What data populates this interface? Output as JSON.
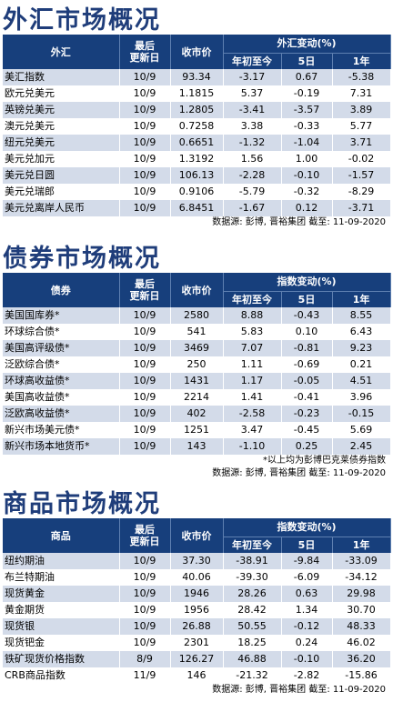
{
  "fx": {
    "title": "外汇市场概况",
    "headers": {
      "name": "外汇",
      "date": "最后\n更新日",
      "close": "收市价",
      "change_group": "外汇变动(%)",
      "ytd": "年初至今",
      "d5": "5日",
      "y1": "1年"
    },
    "rows": [
      {
        "name": "美汇指数",
        "date": "10/9",
        "close": "93.34",
        "ytd": "-3.17",
        "d5": "0.67",
        "y1": "-5.38"
      },
      {
        "name": "欧元兑美元",
        "date": "10/9",
        "close": "1.1815",
        "ytd": "5.37",
        "d5": "-0.19",
        "y1": "7.31"
      },
      {
        "name": "英镑兑美元",
        "date": "10/9",
        "close": "1.2805",
        "ytd": "-3.41",
        "d5": "-3.57",
        "y1": "3.89"
      },
      {
        "name": "澳元兑美元",
        "date": "10/9",
        "close": "0.7258",
        "ytd": "3.38",
        "d5": "-0.33",
        "y1": "5.77"
      },
      {
        "name": "纽元兑美元",
        "date": "10/9",
        "close": "0.6651",
        "ytd": "-1.32",
        "d5": "-1.04",
        "y1": "3.71"
      },
      {
        "name": "美元兑加元",
        "date": "10/9",
        "close": "1.3192",
        "ytd": "1.56",
        "d5": "1.00",
        "y1": "-0.02"
      },
      {
        "name": "美元兑日圆",
        "date": "10/9",
        "close": "106.13",
        "ytd": "-2.28",
        "d5": "-0.10",
        "y1": "-1.57"
      },
      {
        "name": "美元兑瑞郎",
        "date": "10/9",
        "close": "0.9106",
        "ytd": "-5.79",
        "d5": "-0.32",
        "y1": "-8.29"
      },
      {
        "name": "美元兑离岸人民币",
        "date": "10/9",
        "close": "6.8451",
        "ytd": "-1.67",
        "d5": "0.12",
        "y1": "-3.71"
      }
    ],
    "source": "数据源: 彭博, 晋裕集团 截至: 11-09-2020"
  },
  "bond": {
    "title": "债券市场概况",
    "headers": {
      "name": "债券",
      "date": "最后\n更新日",
      "close": "收市价",
      "change_group": "指数变动(%)",
      "ytd": "年初至今",
      "d5": "5日",
      "y1": "1年"
    },
    "rows": [
      {
        "name": "美国国库券*",
        "date": "10/9",
        "close": "2580",
        "ytd": "8.88",
        "d5": "-0.43",
        "y1": "8.55"
      },
      {
        "name": "环球综合债*",
        "date": "10/9",
        "close": "541",
        "ytd": "5.83",
        "d5": "0.10",
        "y1": "6.43"
      },
      {
        "name": "美国高评级债*",
        "date": "10/9",
        "close": "3469",
        "ytd": "7.07",
        "d5": "-0.81",
        "y1": "9.23"
      },
      {
        "name": "泛欧综合债*",
        "date": "10/9",
        "close": "250",
        "ytd": "1.11",
        "d5": "-0.69",
        "y1": "0.21"
      },
      {
        "name": "环球高收益债*",
        "date": "10/9",
        "close": "1431",
        "ytd": "1.17",
        "d5": "-0.05",
        "y1": "4.51"
      },
      {
        "name": "美国高收益债*",
        "date": "10/9",
        "close": "2214",
        "ytd": "1.41",
        "d5": "-0.41",
        "y1": "3.96"
      },
      {
        "name": "泛欧高收益债*",
        "date": "10/9",
        "close": "402",
        "ytd": "-2.58",
        "d5": "-0.23",
        "y1": "-0.15"
      },
      {
        "name": "新兴市场美元债*",
        "date": "10/9",
        "close": "1251",
        "ytd": "3.47",
        "d5": "-0.45",
        "y1": "5.69"
      },
      {
        "name": "新兴市场本地货币*",
        "date": "10/9",
        "close": "143",
        "ytd": "-1.10",
        "d5": "0.25",
        "y1": "2.45"
      }
    ],
    "note": "*以上均为彭博巴克莱债券指数",
    "source": "数据源: 彭博, 晋裕集团 截至: 11-09-2020"
  },
  "commodity": {
    "title": "商品市场概况",
    "headers": {
      "name": "商品",
      "date": "最后\n更新日",
      "close": "收市价",
      "change_group": "指数变动(%)",
      "ytd": "年初至今",
      "d5": "5日",
      "y1": "1年"
    },
    "rows": [
      {
        "name": "纽约期油",
        "date": "10/9",
        "close": "37.30",
        "ytd": "-38.91",
        "d5": "-9.84",
        "y1": "-33.09"
      },
      {
        "name": "布兰特期油",
        "date": "10/9",
        "close": "40.06",
        "ytd": "-39.30",
        "d5": "-6.09",
        "y1": "-34.12"
      },
      {
        "name": "现货黄金",
        "date": "10/9",
        "close": "1946",
        "ytd": "28.26",
        "d5": "0.63",
        "y1": "29.98"
      },
      {
        "name": "黄金期货",
        "date": "10/9",
        "close": "1956",
        "ytd": "28.42",
        "d5": "1.34",
        "y1": "30.70"
      },
      {
        "name": "现货银",
        "date": "10/9",
        "close": "26.88",
        "ytd": "50.55",
        "d5": "-0.12",
        "y1": "48.33"
      },
      {
        "name": "现货钯金",
        "date": "10/9",
        "close": "2301",
        "ytd": "18.25",
        "d5": "0.24",
        "y1": "46.02"
      },
      {
        "name": "铁矿现货价格指数",
        "date": "8/9",
        "close": "126.27",
        "ytd": "46.88",
        "d5": "-0.10",
        "y1": "36.20"
      },
      {
        "name": "CRB商品指数",
        "date": "11/9",
        "close": "146",
        "ytd": "-21.32",
        "d5": "-2.82",
        "y1": "-15.86"
      }
    ],
    "source": "数据源: 彭博, 晋裕集团 截至: 11-09-2020"
  }
}
